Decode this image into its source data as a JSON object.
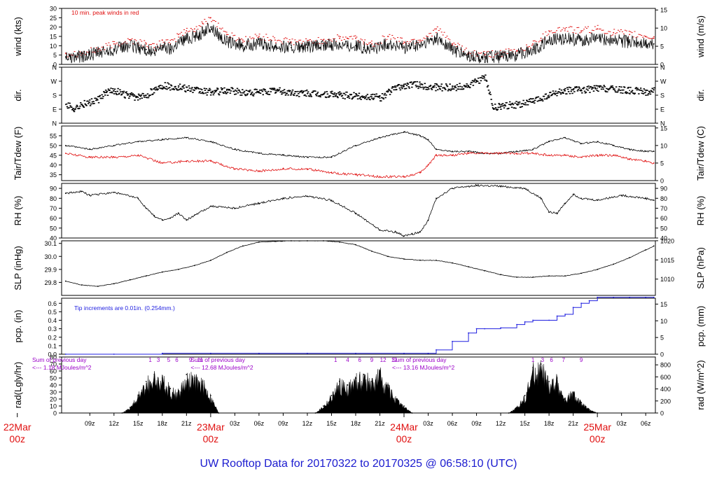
{
  "title": "UW Rooftop Data for 20170322  to  20170325 @ 06:58:10  (UTC)",
  "colors": {
    "black": "#000000",
    "red": "#e01010",
    "blue": "#2020e0",
    "purple": "#9a00c8",
    "title": "#1a1acf"
  },
  "x_axis": {
    "hour_ticks": [
      "09z",
      "12z",
      "15z",
      "18z",
      "21z",
      "03z",
      "06z",
      "09z",
      "12z",
      "15z",
      "18z",
      "21z",
      "03z",
      "06z",
      "09z",
      "12z",
      "15z",
      "18z",
      "21z",
      "03z",
      "06z"
    ],
    "hour_tick_hours": [
      9,
      12,
      15,
      18,
      21,
      27,
      30,
      33,
      36,
      39,
      42,
      45,
      51,
      54,
      57,
      60,
      63,
      66,
      69,
      75,
      78
    ],
    "day_labels": [
      {
        "date": "22Mar",
        "hour": 0,
        "time": "00z"
      },
      {
        "date": "23Mar",
        "hour": 24,
        "time": "00z"
      },
      {
        "date": "24Mar",
        "hour": 48,
        "time": "00z"
      },
      {
        "date": "25Mar",
        "hour": 72,
        "time": "00z"
      }
    ]
  },
  "chart_data": [
    {
      "type": "line",
      "name": "wind",
      "ylabel_left": "wind (kts)",
      "ylabel_right": "wind (m/s)",
      "ylim": [
        0,
        30
      ],
      "yticks_left": [
        0,
        5,
        10,
        15,
        20,
        25,
        30
      ],
      "yticks_right": [
        0,
        5,
        10,
        15
      ],
      "annotation": "10 min. peak winds in red",
      "x_hours": [
        6,
        8,
        10,
        12,
        14,
        16,
        17,
        18,
        19,
        20,
        21,
        22,
        23,
        24,
        26,
        28,
        30,
        32,
        34,
        36,
        38,
        40,
        41,
        42,
        43,
        44,
        46,
        48,
        50,
        52,
        54,
        56,
        58,
        60,
        62,
        64,
        65,
        66,
        68,
        70,
        72,
        74,
        76,
        78,
        79
      ],
      "series": [
        {
          "values": [
            4,
            4,
            6,
            8,
            10,
            8,
            6,
            10,
            8,
            12,
            14,
            15,
            17,
            20,
            12,
            10,
            11,
            10,
            9,
            9,
            10,
            11,
            10,
            10,
            9,
            8,
            11,
            9,
            10,
            14,
            8,
            4,
            4,
            4,
            5,
            8,
            10,
            13,
            14,
            13,
            14,
            13,
            12,
            11,
            11
          ]
        },
        {
          "values": [
            6,
            6,
            8,
            11,
            13,
            11,
            9,
            13,
            11,
            16,
            18,
            19,
            22,
            25,
            16,
            13,
            15,
            13,
            12,
            12,
            13,
            14,
            14,
            14,
            12,
            11,
            15,
            12,
            13,
            19,
            11,
            6,
            5,
            6,
            7,
            11,
            14,
            18,
            19,
            18,
            19,
            17,
            16,
            15,
            14
          ]
        }
      ]
    },
    {
      "type": "scatter",
      "name": "dir",
      "ylabel": "dir.",
      "yticks": [
        "N",
        "E",
        "S",
        "W",
        "N"
      ],
      "x_hours": [
        6,
        7,
        8,
        9,
        10,
        11,
        12,
        13,
        14,
        15,
        16,
        17,
        18,
        20,
        22,
        24,
        26,
        28,
        30,
        32,
        34,
        36,
        38,
        40,
        42,
        44,
        45,
        46,
        47,
        48,
        49,
        50,
        52,
        54,
        56,
        57,
        58,
        59,
        60,
        62,
        64,
        66,
        68,
        70,
        72,
        74,
        76,
        78,
        79
      ],
      "values": [
        120,
        95,
        120,
        135,
        150,
        200,
        210,
        185,
        175,
        165,
        180,
        220,
        240,
        230,
        210,
        200,
        210,
        195,
        200,
        210,
        195,
        190,
        185,
        180,
        175,
        170,
        160,
        200,
        230,
        240,
        250,
        240,
        230,
        230,
        240,
        270,
        290,
        100,
        110,
        120,
        140,
        180,
        210,
        215,
        225,
        220,
        210,
        200,
        215
      ]
    },
    {
      "type": "line",
      "name": "temperature",
      "ylabel_left": "Tair/Tdew (F)",
      "ylabel_right": "Tair/Tdew (C)",
      "ylim": [
        32,
        60
      ],
      "yticks_left": [
        35,
        40,
        45,
        50,
        55
      ],
      "yticks_right": [
        0,
        5,
        10,
        15
      ],
      "x_hours": [
        6,
        9,
        12,
        15,
        18,
        21,
        24,
        27,
        30,
        33,
        36,
        39,
        42,
        45,
        48,
        50,
        51,
        52,
        54,
        56,
        58,
        60,
        62,
        64,
        66,
        68,
        70,
        72,
        74,
        76,
        78,
        79
      ],
      "series": [
        {
          "name": "Tair",
          "values": [
            50,
            48,
            50,
            52,
            53,
            54,
            52,
            48,
            46,
            45,
            44,
            44,
            50,
            54,
            57,
            55,
            53,
            48,
            47,
            47,
            46,
            46,
            47,
            48,
            52,
            54,
            51,
            52,
            50,
            48,
            47,
            47
          ]
        },
        {
          "name": "Tdew",
          "values": [
            46,
            44,
            44,
            45,
            41,
            42,
            42,
            38,
            37,
            38,
            38,
            36,
            35,
            34,
            34,
            36,
            40,
            45,
            45,
            46,
            46,
            46,
            46,
            46,
            45,
            45,
            44,
            45,
            45,
            43,
            42,
            41
          ]
        }
      ]
    },
    {
      "type": "line",
      "name": "rh",
      "ylabel_left": "RH (%)",
      "ylabel_right": "RH (%)",
      "ylim": [
        40,
        95
      ],
      "yticks_left": [
        40,
        50,
        60,
        70,
        80,
        90
      ],
      "yticks_right": [
        40,
        50,
        60,
        70,
        80,
        90
      ],
      "x_hours": [
        6,
        8,
        9,
        12,
        15,
        16,
        17,
        18,
        19,
        20,
        21,
        22,
        24,
        27,
        30,
        33,
        36,
        39,
        42,
        45,
        47,
        48,
        49,
        50,
        51,
        52,
        54,
        57,
        60,
        63,
        65,
        66,
        67,
        68,
        69,
        70,
        72,
        75,
        78,
        79
      ],
      "values": [
        85,
        87,
        83,
        86,
        80,
        70,
        62,
        58,
        60,
        65,
        58,
        63,
        72,
        70,
        75,
        80,
        82,
        78,
        65,
        48,
        46,
        42,
        44,
        46,
        58,
        80,
        90,
        93,
        92,
        90,
        80,
        66,
        65,
        75,
        84,
        80,
        78,
        83,
        80,
        78
      ]
    },
    {
      "type": "line",
      "name": "slp",
      "ylabel_left": "SLP (inHg)",
      "ylabel_right": "SLP (hPa)",
      "ylim": [
        29.7,
        30.12
      ],
      "yticks_left": [
        29.8,
        29.9,
        30.0,
        30.1
      ],
      "yticks_right": [
        1010,
        1015,
        1020
      ],
      "x_hours": [
        6,
        8,
        10,
        12,
        14,
        16,
        18,
        20,
        22,
        24,
        26,
        28,
        30,
        32,
        34,
        36,
        38,
        40,
        42,
        44,
        46,
        48,
        50,
        52,
        54,
        56,
        58,
        60,
        62,
        64,
        66,
        68,
        70,
        72,
        74,
        76,
        78,
        79
      ],
      "values": [
        29.81,
        29.78,
        29.77,
        29.79,
        29.82,
        29.85,
        29.88,
        29.9,
        29.93,
        29.97,
        30.03,
        30.08,
        30.11,
        30.115,
        30.12,
        30.12,
        30.12,
        30.11,
        30.09,
        30.04,
        30.0,
        29.98,
        29.97,
        29.97,
        29.95,
        29.92,
        29.89,
        29.86,
        29.84,
        29.84,
        29.85,
        29.85,
        29.87,
        29.9,
        29.94,
        29.99,
        30.05,
        30.08
      ]
    },
    {
      "type": "line",
      "name": "precipitation",
      "ylabel_left": "pcp. (in)",
      "ylabel_right": "pcp. (mm)",
      "ylim": [
        0,
        0.66
      ],
      "yticks_left": [
        0.0,
        0.1,
        0.2,
        0.3,
        0.4,
        0.5,
        0.6
      ],
      "yticks_right": [
        0,
        5,
        10,
        15
      ],
      "annotation": "Tip increments are 0.01in. (0.254mm.)",
      "x_hours": [
        6,
        12,
        18,
        24,
        30,
        36,
        42,
        48,
        51,
        52,
        54,
        56,
        57,
        58,
        60,
        62,
        63,
        64,
        66,
        67,
        68,
        69,
        70,
        71,
        72,
        74,
        76,
        78,
        79
      ],
      "values": [
        0.0,
        0.0,
        0.01,
        0.01,
        0.01,
        0.01,
        0.01,
        0.01,
        0.01,
        0.05,
        0.15,
        0.25,
        0.3,
        0.3,
        0.31,
        0.35,
        0.38,
        0.4,
        0.4,
        0.45,
        0.47,
        0.55,
        0.6,
        0.63,
        0.67,
        0.67,
        0.67,
        0.67,
        0.67
      ]
    },
    {
      "type": "area",
      "name": "radiation",
      "ylabel_left": "rad(Lgly/hr)",
      "ylabel_right": "rad (W/m^2)",
      "ylim": [
        0,
        80
      ],
      "yticks_left": [
        0,
        10,
        20,
        30,
        40,
        50,
        60,
        70,
        80
      ],
      "yticks_right": [
        0,
        200,
        400,
        600,
        800
      ],
      "day_summaries": [
        {
          "line1": "Sum of previous day",
          "line2": "<--- 1.18 MJoules/m^2",
          "hour": 1
        },
        {
          "line1": "Sum of previous day",
          "line2": "<--- 12.68 MJoules/m^2",
          "hour": 25
        },
        {
          "line1": "Sum of previous day",
          "line2": "<--- 13.16 MJoules/m^2",
          "hour": 50
        }
      ],
      "top_markers": [
        {
          "label": "1",
          "hour": 16.5
        },
        {
          "label": "3",
          "hour": 17.5
        },
        {
          "label": "5",
          "hour": 18.8
        },
        {
          "label": "6",
          "hour": 19.8
        },
        {
          "label": "9",
          "hour": 21.5
        },
        {
          "label": "11",
          "hour": 22.7
        },
        {
          "label": "1",
          "hour": 39.5
        },
        {
          "label": "4",
          "hour": 41
        },
        {
          "label": "6",
          "hour": 42.5
        },
        {
          "label": "9",
          "hour": 44
        },
        {
          "label": "12",
          "hour": 45.4
        },
        {
          "label": "13",
          "hour": 46.8
        },
        {
          "label": "1",
          "hour": 64
        },
        {
          "label": "3",
          "hour": 65.2
        },
        {
          "label": "6",
          "hour": 66.3
        },
        {
          "label": "7",
          "hour": 67.8
        },
        {
          "label": "9",
          "hour": 70
        }
      ],
      "x_hours": [
        13,
        14,
        15,
        16,
        17,
        18,
        19,
        20,
        21,
        22,
        23,
        24,
        25,
        37,
        38,
        39,
        40,
        41,
        42,
        43,
        44,
        45,
        46,
        47,
        48,
        49,
        61,
        62,
        63,
        64,
        65,
        66,
        67,
        68,
        69,
        70,
        71,
        72
      ],
      "values": [
        0,
        8,
        25,
        45,
        55,
        50,
        35,
        30,
        55,
        50,
        45,
        25,
        0,
        0,
        10,
        25,
        45,
        40,
        50,
        55,
        45,
        60,
        40,
        20,
        10,
        0,
        0,
        8,
        25,
        65,
        70,
        45,
        50,
        20,
        30,
        15,
        5,
        0
      ]
    }
  ]
}
